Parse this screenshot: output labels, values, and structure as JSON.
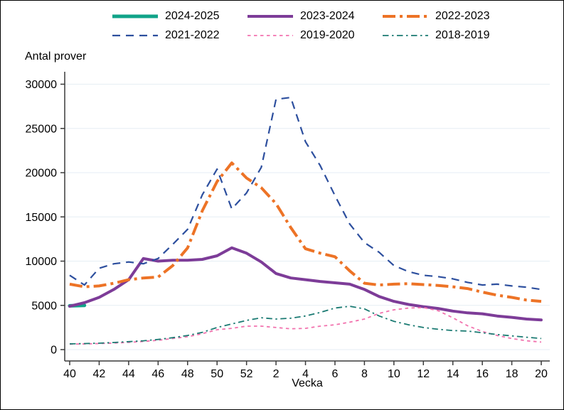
{
  "window": {
    "background": "#ffffff",
    "border_color": "#000000"
  },
  "chart_data": {
    "type": "line",
    "title": "",
    "y_axis_title": "Antal prover",
    "xlabel": "Vecka",
    "ylim": [
      0,
      30000
    ],
    "yticks": [
      0,
      5000,
      10000,
      15000,
      20000,
      25000,
      30000
    ],
    "ytick_labels": [
      "0",
      "5000",
      "10000",
      "15000",
      "20000",
      "25000",
      "30000"
    ],
    "x_week_labels": [
      "40",
      "41",
      "42",
      "43",
      "44",
      "45",
      "46",
      "47",
      "48",
      "49",
      "50",
      "51",
      "52",
      "1",
      "2",
      "3",
      "4",
      "5",
      "6",
      "7",
      "8",
      "9",
      "10",
      "11",
      "12",
      "13",
      "14",
      "15",
      "16",
      "17",
      "18",
      "19",
      "20"
    ],
    "xticks": [
      {
        "index": 0,
        "label": "40"
      },
      {
        "index": 2,
        "label": "42"
      },
      {
        "index": 4,
        "label": "44"
      },
      {
        "index": 6,
        "label": "46"
      },
      {
        "index": 8,
        "label": "48"
      },
      {
        "index": 10,
        "label": "50"
      },
      {
        "index": 12,
        "label": "52"
      },
      {
        "index": 14,
        "label": "2"
      },
      {
        "index": 16,
        "label": "4"
      },
      {
        "index": 18,
        "label": "6"
      },
      {
        "index": 20,
        "label": "8"
      },
      {
        "index": 22,
        "label": "10"
      },
      {
        "index": 24,
        "label": "12"
      },
      {
        "index": 26,
        "label": "14"
      },
      {
        "index": 28,
        "label": "16"
      },
      {
        "index": 30,
        "label": "18"
      },
      {
        "index": 32,
        "label": "20"
      }
    ],
    "grid": {
      "horizontal": true,
      "vertical": false,
      "color": "#e6eef4"
    },
    "axis_color": "#3a3a3a",
    "legend_position": "top",
    "legend_columns": 3,
    "series": [
      {
        "name": "2024-2025",
        "color": "#10a388",
        "dash": "solid",
        "width": 5,
        "values": [
          4950,
          5000,
          null,
          null,
          null,
          null,
          null,
          null,
          null,
          null,
          null,
          null,
          null,
          null,
          null,
          null,
          null,
          null,
          null,
          null,
          null,
          null,
          null,
          null,
          null,
          null,
          null,
          null,
          null,
          null,
          null,
          null,
          null
        ]
      },
      {
        "name": "2023-2024",
        "color": "#7d3c98",
        "dash": "solid",
        "width": 4,
        "values": [
          4900,
          5300,
          5900,
          6800,
          7900,
          10300,
          10000,
          10100,
          10100,
          10200,
          10600,
          11500,
          10900,
          9900,
          8600,
          8100,
          7900,
          7700,
          7550,
          7400,
          6800,
          6000,
          5450,
          5100,
          4850,
          4650,
          4350,
          4150,
          4050,
          3800,
          3650,
          3450,
          3350
        ]
      },
      {
        "name": "2022-2023",
        "color": "#ed7326",
        "dash": "longdashdot",
        "width": 4,
        "values": [
          7400,
          7100,
          7200,
          7500,
          7900,
          8100,
          8200,
          9500,
          11500,
          15700,
          19000,
          21100,
          19400,
          18300,
          16500,
          13800,
          11400,
          10900,
          10500,
          8900,
          7500,
          7300,
          7400,
          7450,
          7350,
          7250,
          7100,
          6900,
          6500,
          6150,
          5900,
          5600,
          5450
        ]
      },
      {
        "name": "2021-2022",
        "color": "#2d4f9e",
        "dash": "dash",
        "width": 2.2,
        "values": [
          8400,
          7300,
          9200,
          9700,
          9900,
          9700,
          10300,
          11900,
          13600,
          17500,
          20400,
          15900,
          17700,
          20600,
          28300,
          28500,
          23500,
          20800,
          17400,
          14200,
          12100,
          11000,
          9500,
          8800,
          8400,
          8250,
          8000,
          7600,
          7300,
          7400,
          7200,
          7050,
          6800
        ]
      },
      {
        "name": "2019-2020",
        "color": "#f272ae",
        "dash": "dot",
        "width": 1.8,
        "values": [
          620,
          640,
          680,
          740,
          820,
          920,
          1050,
          1250,
          1450,
          1800,
          2250,
          2400,
          2650,
          2650,
          2500,
          2350,
          2400,
          2650,
          2800,
          3100,
          3450,
          4100,
          4500,
          4700,
          4750,
          4400,
          3600,
          2700,
          2050,
          1600,
          1250,
          1000,
          850
        ]
      },
      {
        "name": "2018-2019",
        "color": "#1a7a72",
        "dash": "dashdot",
        "width": 1.8,
        "values": [
          650,
          680,
          720,
          800,
          900,
          1000,
          1150,
          1350,
          1600,
          1950,
          2500,
          2900,
          3300,
          3600,
          3450,
          3550,
          3800,
          4200,
          4700,
          4900,
          4600,
          3800,
          3200,
          2800,
          2500,
          2300,
          2150,
          2100,
          1900,
          1700,
          1550,
          1400,
          1250
        ]
      }
    ]
  }
}
